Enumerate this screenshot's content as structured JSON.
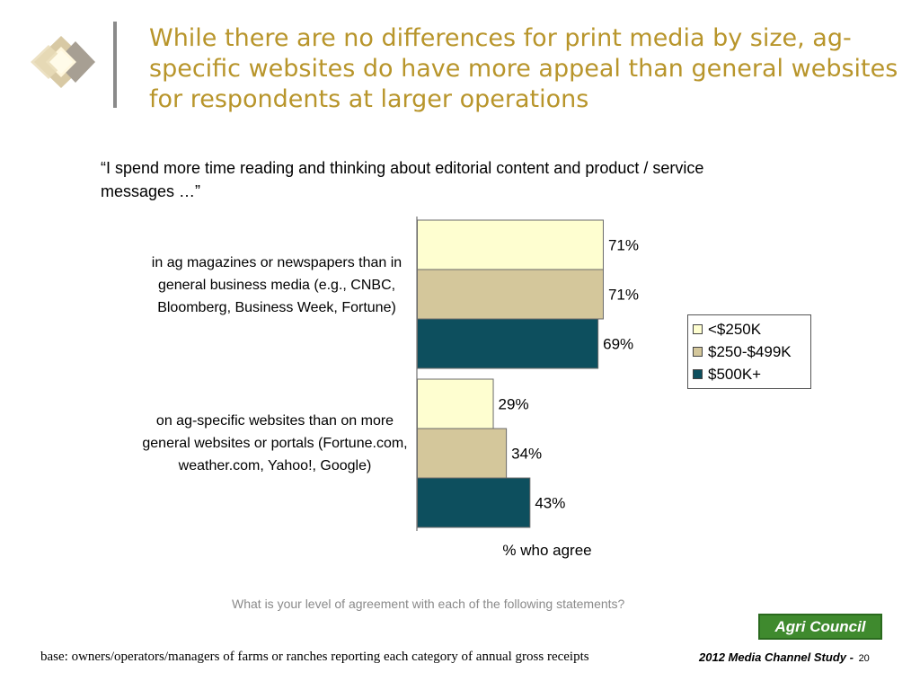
{
  "slide": {
    "title": "While there are no differences for print media by size, ag-specific websites do have more appeal than general websites for respondents at larger operations",
    "quote": "“I spend more time reading and thinking about editorial content and product / service messages …”",
    "question": "What is your level of agreement with each of the following statements?",
    "base_note": "base:  owners/operators/managers of farms or ranches reporting each category of annual gross receipts",
    "study_label": "2012 Media Channel Study -",
    "page_number": "20",
    "brand_logo_text": "Agri Council"
  },
  "colors": {
    "title": "#b8952b",
    "series": [
      "#fefed0",
      "#d4c79b",
      "#0d4f5e"
    ]
  },
  "chart_data": {
    "type": "bar",
    "orientation": "horizontal",
    "categories": [
      "in ag magazines or newspapers than in general business media (e.g., CNBC, Bloomberg, Business Week, Fortune)",
      "on ag-specific websites than on more general websites or portals (Fortune.com, weather.com, Yahoo!, Google)"
    ],
    "series": [
      {
        "name": "<$250K",
        "values": [
          71,
          29
        ]
      },
      {
        "name": "$250-$499K",
        "values": [
          71,
          34
        ]
      },
      {
        "name": "$500K+",
        "values": [
          69,
          43
        ]
      }
    ],
    "xlabel": "% who agree",
    "value_format": "{v}%",
    "xlim": [
      0,
      100
    ],
    "grid": false,
    "legend_position": "right"
  }
}
